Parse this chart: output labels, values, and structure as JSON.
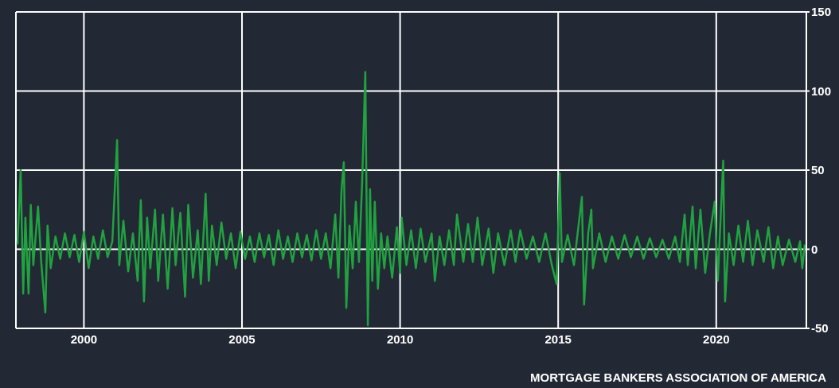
{
  "chart_data": {
    "type": "line",
    "color": "#21a140",
    "x": [
      1997.9,
      1998.0,
      1998.08,
      1998.15,
      1998.25,
      1998.32,
      1998.4,
      1998.55,
      1998.65,
      1998.78,
      1998.85,
      1998.95,
      1999.1,
      1999.25,
      1999.4,
      1999.55,
      1999.7,
      1999.85,
      2000.0,
      2000.15,
      2000.3,
      2000.45,
      2000.6,
      2000.75,
      2000.9,
      2001.05,
      2001.12,
      2001.25,
      2001.4,
      2001.55,
      2001.7,
      2001.8,
      2001.9,
      2002.0,
      2002.1,
      2002.25,
      2002.35,
      2002.5,
      2002.65,
      2002.8,
      2002.9,
      2003.05,
      2003.2,
      2003.3,
      2003.45,
      2003.6,
      2003.7,
      2003.85,
      2003.95,
      2004.05,
      2004.2,
      2004.35,
      2004.5,
      2004.65,
      2004.8,
      2004.95,
      2005.1,
      2005.25,
      2005.4,
      2005.55,
      2005.7,
      2005.85,
      2006.0,
      2006.15,
      2006.3,
      2006.45,
      2006.6,
      2006.75,
      2006.9,
      2007.05,
      2007.2,
      2007.35,
      2007.5,
      2007.65,
      2007.8,
      2007.95,
      2008.05,
      2008.15,
      2008.22,
      2008.3,
      2008.4,
      2008.5,
      2008.6,
      2008.7,
      2008.8,
      2008.9,
      2008.98,
      2009.05,
      2009.12,
      2009.2,
      2009.3,
      2009.4,
      2009.5,
      2009.6,
      2009.75,
      2009.9,
      2010.0,
      2010.05,
      2010.2,
      2010.35,
      2010.5,
      2010.65,
      2010.8,
      2011.0,
      2011.1,
      2011.25,
      2011.4,
      2011.55,
      2011.7,
      2011.8,
      2012.0,
      2012.15,
      2012.3,
      2012.45,
      2012.6,
      2012.8,
      2012.95,
      2013.1,
      2013.3,
      2013.5,
      2013.65,
      2013.8,
      2014.0,
      2014.2,
      2014.4,
      2014.6,
      2014.8,
      2014.95,
      2015.05,
      2015.12,
      2015.3,
      2015.5,
      2015.65,
      2015.75,
      2015.82,
      2015.95,
      2016.05,
      2016.1,
      2016.3,
      2016.5,
      2016.7,
      2016.9,
      2017.1,
      2017.3,
      2017.5,
      2017.7,
      2017.9,
      2018.1,
      2018.3,
      2018.5,
      2018.7,
      2018.85,
      2019.0,
      2019.1,
      2019.25,
      2019.35,
      2019.5,
      2019.65,
      2019.8,
      2019.95,
      2020.05,
      2020.15,
      2020.22,
      2020.28,
      2020.4,
      2020.55,
      2020.7,
      2020.85,
      2021.0,
      2021.15,
      2021.3,
      2021.5,
      2021.65,
      2021.8,
      2021.95,
      2022.1,
      2022.3,
      2022.5,
      2022.65,
      2022.72,
      2022.8
    ],
    "values": [
      3,
      50,
      -28,
      20,
      -28,
      28,
      -10,
      27,
      -8,
      -40,
      15,
      -12,
      8,
      -6,
      10,
      -5,
      9,
      -8,
      11,
      -12,
      8,
      -6,
      12,
      -5,
      5,
      69,
      -10,
      18,
      -14,
      10,
      -20,
      31,
      -33,
      20,
      -12,
      25,
      -20,
      22,
      -25,
      26,
      -10,
      23,
      -30,
      28,
      -18,
      12,
      -22,
      35,
      -20,
      15,
      -10,
      17,
      -6,
      10,
      -12,
      11,
      -6,
      8,
      -8,
      10,
      -5,
      9,
      -10,
      12,
      -6,
      8,
      -8,
      10,
      -5,
      9,
      -7,
      12,
      -6,
      10,
      -12,
      22,
      -18,
      38,
      55,
      -37,
      15,
      -12,
      30,
      -8,
      42,
      112,
      -48,
      38,
      -20,
      30,
      -25,
      10,
      -12,
      8,
      -18,
      14,
      -15,
      20,
      -10,
      12,
      -12,
      13,
      -8,
      10,
      -20,
      8,
      -10,
      12,
      -10,
      22,
      -8,
      16,
      -8,
      20,
      -10,
      13,
      -15,
      10,
      -10,
      12,
      -8,
      12,
      -6,
      8,
      -8,
      10,
      -10,
      -22,
      48,
      -8,
      9,
      -10,
      16,
      33,
      -35,
      10,
      25,
      -12,
      10,
      -8,
      8,
      -6,
      9,
      -5,
      8,
      -6,
      7,
      -5,
      6,
      -6,
      8,
      -8,
      22,
      -10,
      27,
      -12,
      25,
      -15,
      10,
      30,
      -20,
      25,
      56,
      -33,
      10,
      -10,
      15,
      -8,
      18,
      -10,
      12,
      -8,
      14,
      -12,
      8,
      -10,
      6,
      -8,
      5,
      -12,
      3
    ],
    "xlim": [
      1997.85,
      2022.85
    ],
    "xticks": [
      2000,
      2005,
      2010,
      2015,
      2020
    ],
    "ylim": [
      -50,
      150
    ],
    "yticks": [
      -50,
      0,
      50,
      100,
      150
    ],
    "grid": true,
    "annotations": [
      "MORTGAGE BANKERS ASSOCIATION OF AMERICA"
    ]
  }
}
